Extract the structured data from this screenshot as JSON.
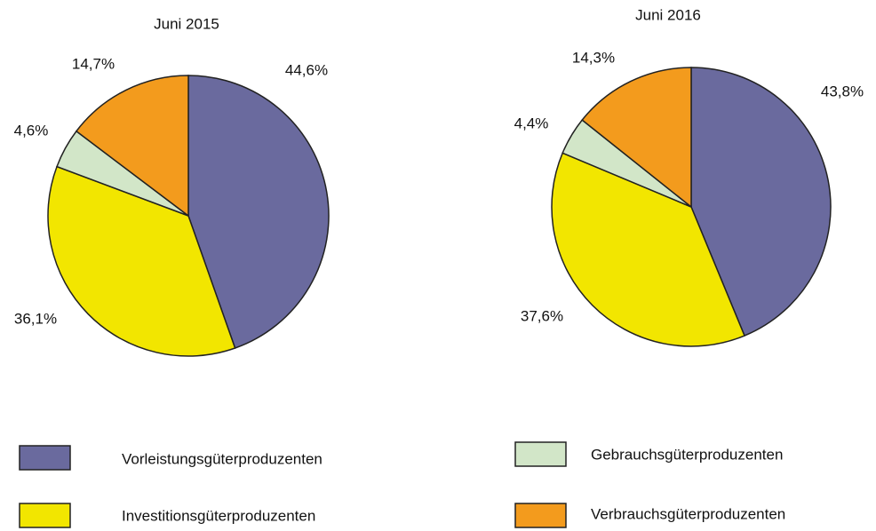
{
  "chart_data": [
    {
      "type": "pie",
      "title": "Juni 2015",
      "categories": [
        "Vorleistungsgüterproduzenten",
        "Investitionsgüterproduzenten",
        "Gebrauchsgüterproduzenten",
        "Verbrauchsgüterproduzenten"
      ],
      "values": [
        44.6,
        36.1,
        4.6,
        14.7
      ],
      "value_labels": [
        "44,6%",
        "36,1%",
        "4,6%",
        "14,7%"
      ],
      "colors": [
        "#6a6a9e",
        "#f2e600",
        "#d2e6c8",
        "#f39b1d"
      ]
    },
    {
      "type": "pie",
      "title": "Juni 2016",
      "categories": [
        "Vorleistungsgüterproduzenten",
        "Investitionsgüterproduzenten",
        "Gebrauchsgüterproduzenten",
        "Verbrauchsgüterproduzenten"
      ],
      "values": [
        43.8,
        37.6,
        4.4,
        14.3
      ],
      "value_labels": [
        "43,8%",
        "37,6%",
        "4,4%",
        "14,3%"
      ],
      "colors": [
        "#6a6a9e",
        "#f2e600",
        "#d2e6c8",
        "#f39b1d"
      ]
    }
  ]
}
